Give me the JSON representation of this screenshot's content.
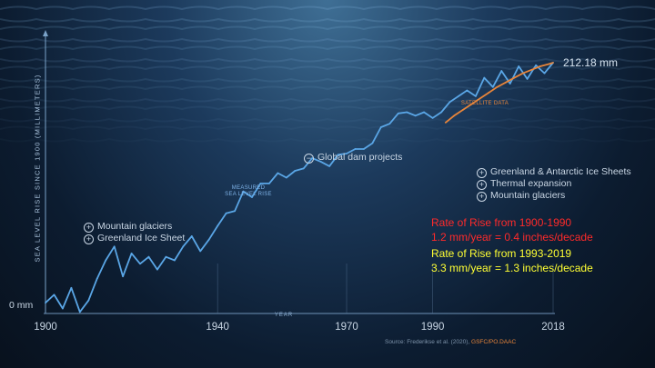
{
  "chart_data": {
    "type": "line",
    "ylabel": "SEA LEVEL RISE SINCE 1900 (MILLIMETERS)",
    "xlabel": "YEAR",
    "x_ticks": [
      1900,
      1940,
      1970,
      1990,
      2018
    ],
    "x_range": [
      1900,
      2018
    ],
    "y_range": [
      0,
      212.18
    ],
    "y_tick_label": "0 mm",
    "end_value_label": "212.18 mm",
    "series": [
      {
        "name": "MEASURED SEA LEVEL RISE",
        "color": "#5aa6e6",
        "x": [
          1900,
          1902,
          1904,
          1906,
          1908,
          1910,
          1912,
          1914,
          1916,
          1918,
          1920,
          1922,
          1924,
          1926,
          1928,
          1930,
          1932,
          1934,
          1936,
          1938,
          1940,
          1942,
          1944,
          1946,
          1948,
          1950,
          1952,
          1954,
          1956,
          1958,
          1960,
          1962,
          1964,
          1966,
          1968,
          1970,
          1972,
          1974,
          1976,
          1978,
          1980,
          1982,
          1984,
          1986,
          1988,
          1990,
          1992,
          1994,
          1996,
          1998,
          2000,
          2002,
          2004,
          2006,
          2008,
          2010,
          2012,
          2014,
          2016,
          2018
        ],
        "y": [
          3,
          10,
          -2,
          16,
          -5,
          5,
          24,
          40,
          52,
          26,
          46,
          37,
          43,
          32,
          43,
          40,
          52,
          61,
          48,
          58,
          70,
          81,
          83,
          100,
          95,
          107,
          107,
          116,
          112,
          118,
          120,
          129,
          126,
          122,
          132,
          133,
          137,
          137,
          142,
          156,
          159,
          168,
          169,
          166,
          169,
          164,
          169,
          178,
          183,
          188,
          183,
          199,
          191,
          205,
          194,
          209,
          198,
          210,
          203,
          212.18
        ]
      },
      {
        "name": "SATELLITE DATA",
        "color": "#e8853a",
        "x": [
          1993,
          1995,
          1997,
          1999,
          2001,
          2003,
          2005,
          2007,
          2009,
          2011,
          2013,
          2015,
          2017,
          2018
        ],
        "y": [
          160,
          166,
          171,
          176,
          181,
          186,
          191,
          195,
          199,
          203,
          206,
          209,
          211,
          212.18
        ]
      }
    ],
    "series_labels": {
      "measured": [
        "MEASURED",
        "SEA LEVEL RISE"
      ],
      "satellite": "SATELLITE DATA"
    },
    "annotations": {
      "early": [
        "Mountain glaciers",
        "Greenland Ice Sheet"
      ],
      "dams": "Global dam projects",
      "late": [
        "Greenland & Antarctic Ice Sheets",
        "Thermal expansion",
        "Mountain glaciers"
      ]
    },
    "rates": [
      {
        "title": "Rate of Rise from 1900-1990",
        "value": "1.2 mm/year = 0.4 inches/decade",
        "color": "#ff2a2a"
      },
      {
        "title": "Rate of Rise from 1993-2019",
        "value": "3.3 mm/year = 1.3 inches/decade",
        "color": "#ffff33"
      }
    ],
    "source": {
      "prefix": "Source: Frederikse et al. (2020),",
      "highlight": "GSFC/PO.DAAC"
    }
  }
}
